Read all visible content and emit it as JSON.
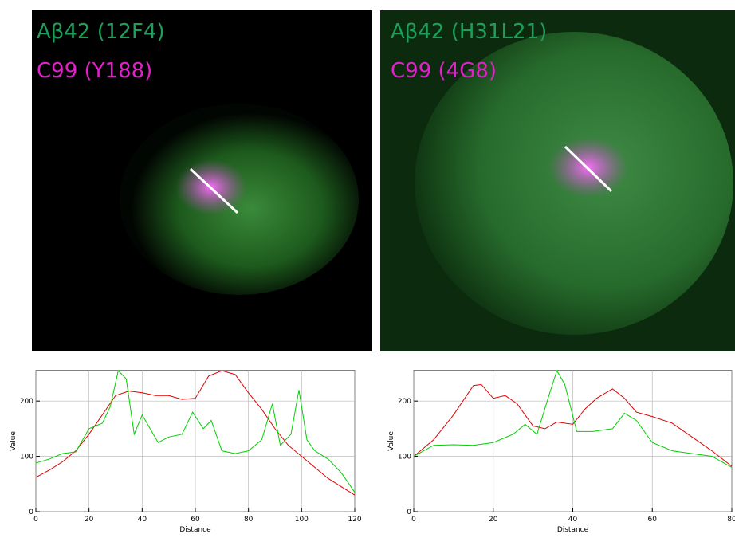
{
  "panels": [
    {
      "labels": [
        "Aβ42 (12F4)",
        "C99 (Y188)"
      ]
    },
    {
      "labels": [
        "Aβ42 (H31L21)",
        "C99 (4G8)"
      ]
    }
  ],
  "chart_data": [
    {
      "type": "line",
      "xlabel": "Distance",
      "ylabel": "Value",
      "xlim": [
        0,
        120
      ],
      "ylim": [
        0,
        255
      ],
      "xticks": [
        0,
        20,
        40,
        60,
        80,
        100,
        120
      ],
      "yticks": [
        0,
        100,
        200
      ],
      "grid": true,
      "series": [
        {
          "color": "#e00000",
          "x": [
            0,
            5,
            10,
            15,
            20,
            25,
            30,
            35,
            40,
            45,
            50,
            55,
            60,
            65,
            70,
            75,
            80,
            85,
            90,
            95,
            100,
            105,
            110,
            115,
            120
          ],
          "values": [
            62,
            75,
            90,
            110,
            140,
            175,
            210,
            218,
            215,
            210,
            210,
            203,
            205,
            245,
            255,
            248,
            215,
            185,
            150,
            120,
            100,
            80,
            60,
            45,
            30
          ]
        },
        {
          "color": "#00d000",
          "x": [
            0,
            5,
            10,
            15,
            20,
            25,
            28,
            31,
            34,
            37,
            40,
            43,
            46,
            50,
            55,
            59,
            63,
            66,
            70,
            75,
            80,
            85,
            89,
            92,
            96,
            99,
            102,
            105,
            110,
            115,
            120
          ],
          "values": [
            88,
            95,
            105,
            108,
            150,
            160,
            190,
            255,
            240,
            140,
            175,
            150,
            125,
            135,
            140,
            180,
            150,
            165,
            110,
            105,
            110,
            130,
            195,
            120,
            140,
            220,
            130,
            110,
            95,
            70,
            35
          ]
        }
      ]
    },
    {
      "type": "line",
      "xlabel": "Distance",
      "ylabel": "Value",
      "xlim": [
        0,
        80
      ],
      "ylim": [
        0,
        255
      ],
      "xticks": [
        0,
        20,
        40,
        60,
        80
      ],
      "yticks": [
        0,
        100,
        200
      ],
      "grid": true,
      "series": [
        {
          "color": "#e00000",
          "x": [
            0,
            5,
            10,
            15,
            17,
            20,
            23,
            26,
            30,
            33,
            36,
            40,
            43,
            46,
            50,
            53,
            56,
            60,
            65,
            70,
            75,
            80
          ],
          "values": [
            100,
            130,
            175,
            228,
            230,
            205,
            210,
            195,
            155,
            150,
            162,
            158,
            185,
            205,
            222,
            205,
            180,
            172,
            160,
            135,
            110,
            82
          ]
        },
        {
          "color": "#00d000",
          "x": [
            0,
            5,
            10,
            15,
            20,
            25,
            28,
            31,
            34,
            36,
            38,
            41,
            45,
            50,
            53,
            56,
            60,
            65,
            70,
            75,
            80
          ],
          "values": [
            100,
            120,
            121,
            120,
            125,
            140,
            158,
            140,
            210,
            255,
            230,
            145,
            145,
            150,
            178,
            165,
            125,
            110,
            105,
            100,
            80
          ]
        }
      ]
    }
  ]
}
